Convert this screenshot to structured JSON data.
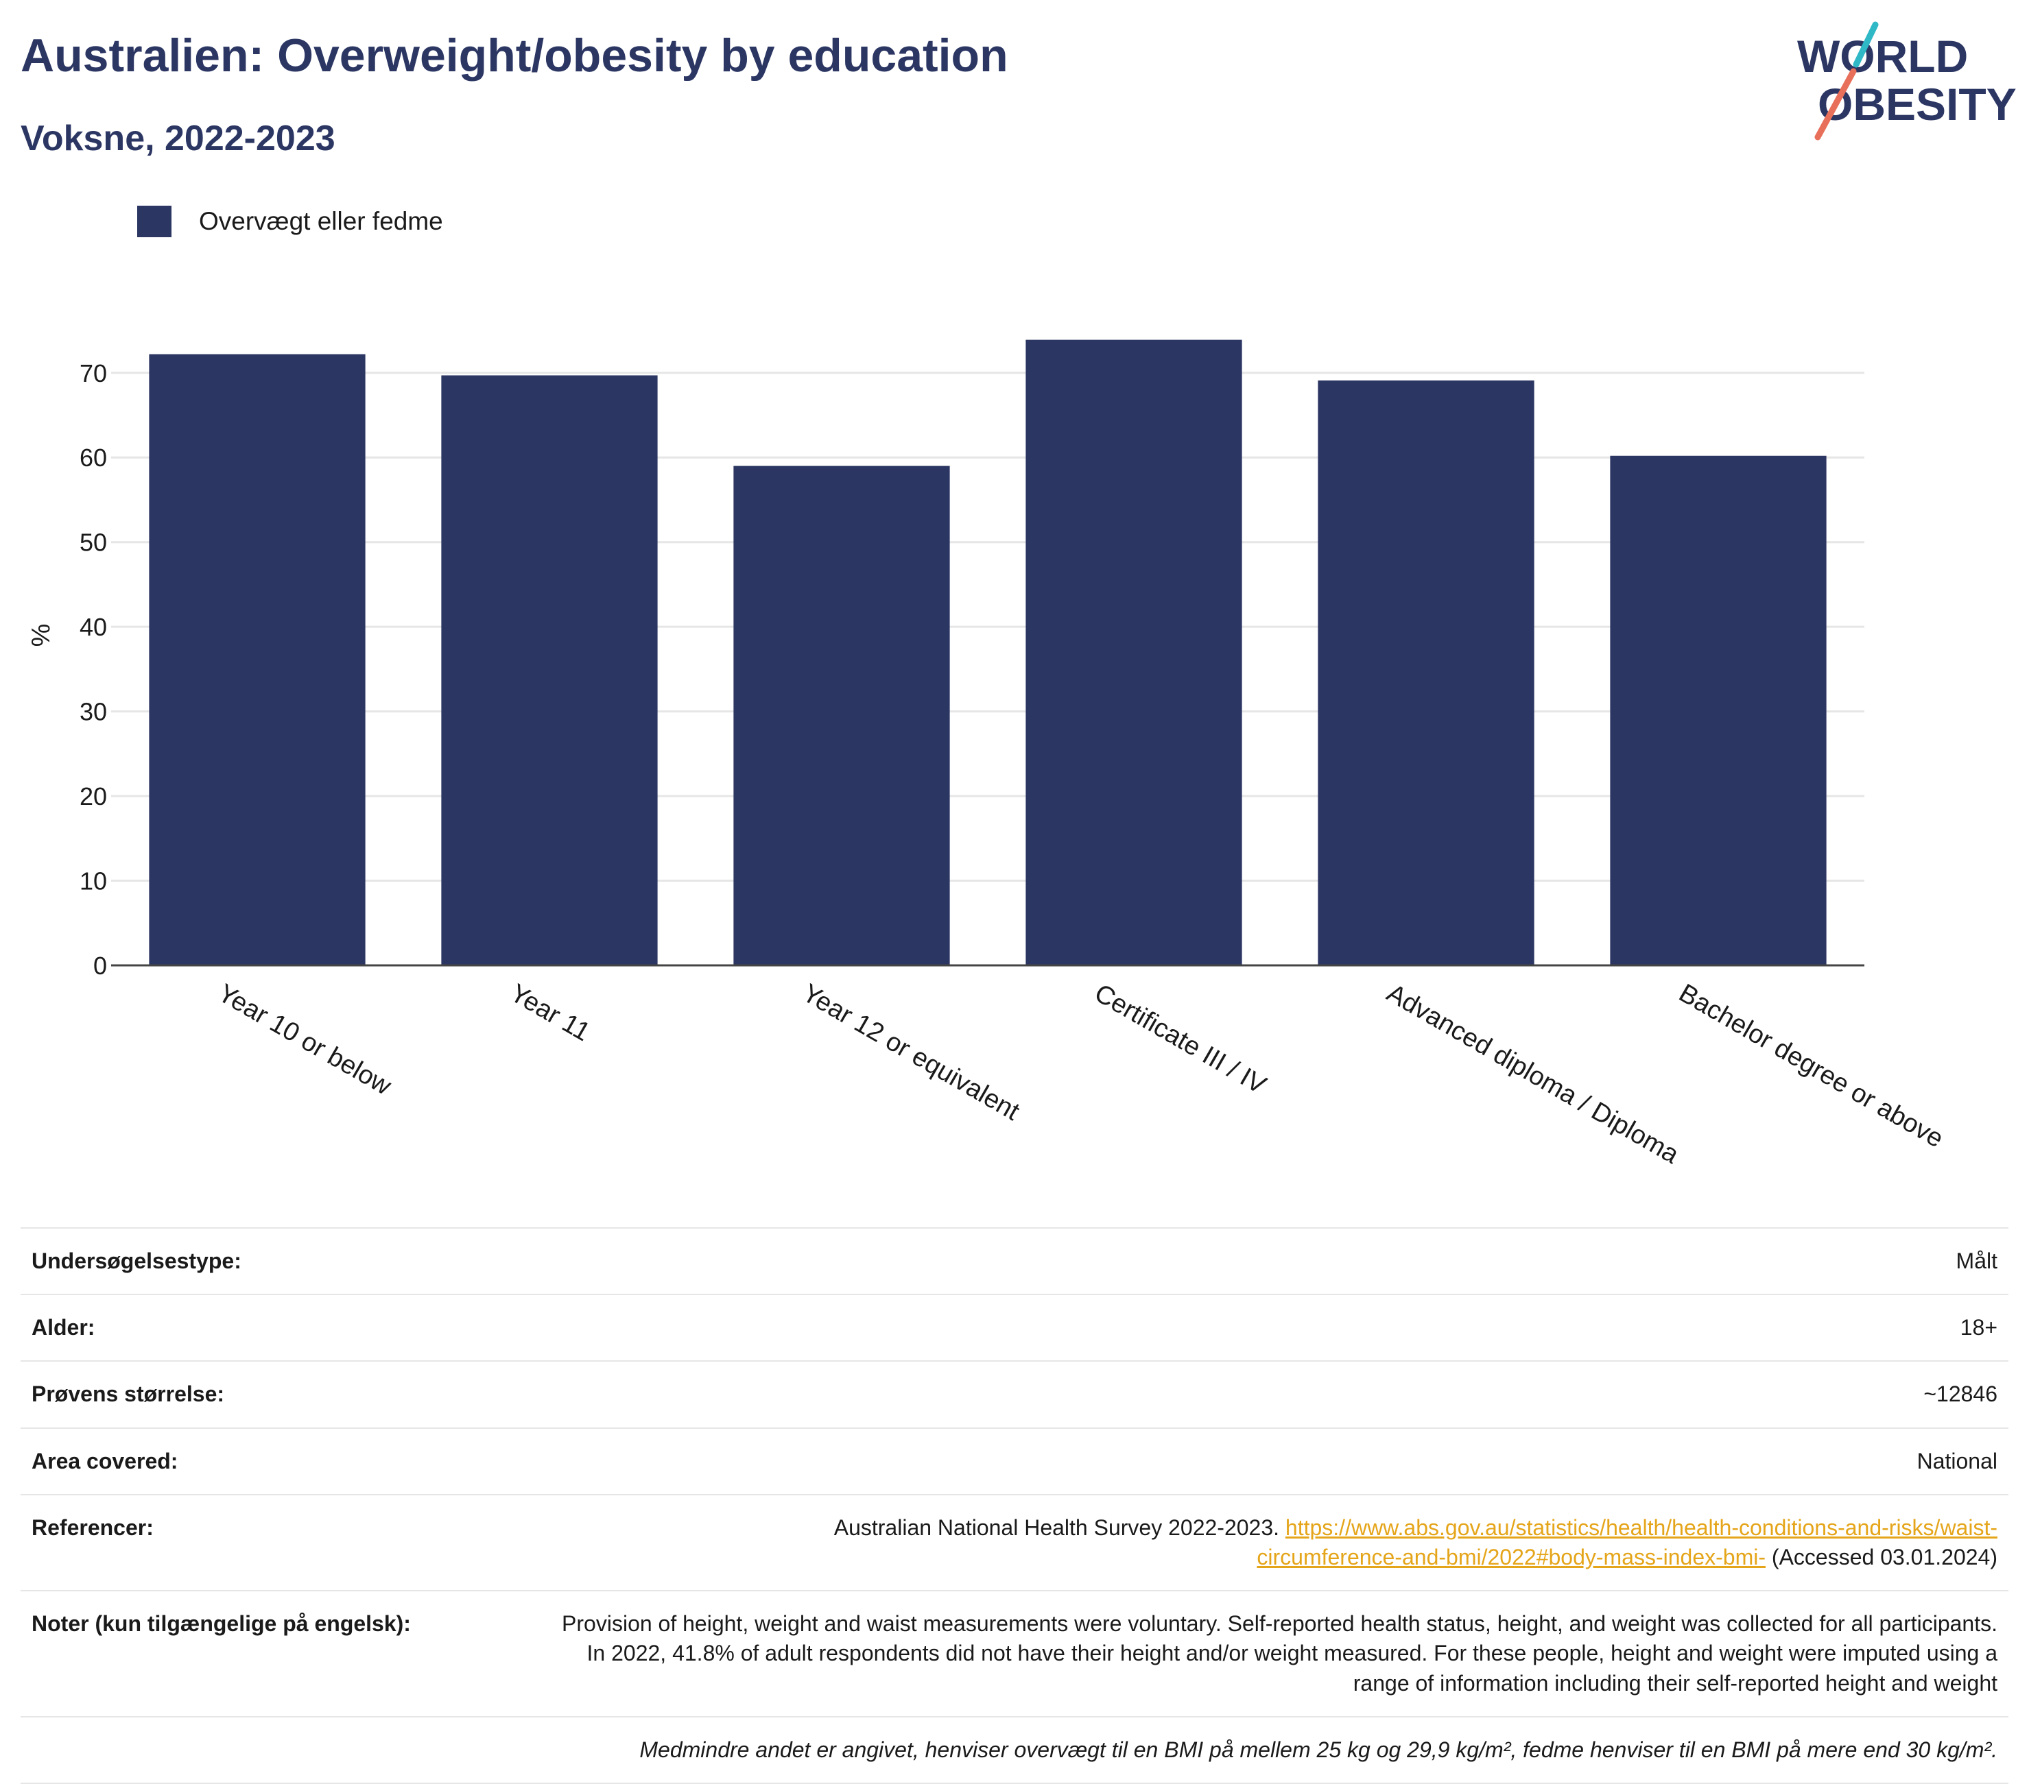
{
  "header": {
    "title": "Australien: Overweight/obesity by education",
    "subtitle": "Voksne, 2022-2023"
  },
  "logo": {
    "line1": "WORLD",
    "line2": "OBESITY"
  },
  "colors": {
    "bar": "#2b3663",
    "title": "#2b3663",
    "link": "#e5a51a",
    "grid": "#e6e6e6"
  },
  "chart_data": {
    "type": "bar",
    "title": "Australien: Overweight/obesity by education",
    "subtitle": "Voksne, 2022-2023",
    "ylabel": "%",
    "xlabel": "",
    "categories": [
      "Year 10 or below",
      "Year 11",
      "Year 12 or equivalent",
      "Certificate III / IV",
      "Advanced diploma / Diploma",
      "Bachelor degree or above"
    ],
    "series": [
      {
        "name": "Overvægt eller fedme",
        "values": [
          72.2,
          69.7,
          59.0,
          73.9,
          69.1,
          60.2
        ]
      }
    ],
    "ylim": [
      0,
      78
    ],
    "yticks": [
      0,
      10,
      20,
      30,
      40,
      50,
      60,
      70
    ],
    "grid": true,
    "legend_position": "top-left"
  },
  "info": {
    "survey_type": {
      "label": "Undersøgelsestype:",
      "value": "Målt"
    },
    "age": {
      "label": "Alder:",
      "value": "18+"
    },
    "sample_size": {
      "label": "Prøvens størrelse:",
      "value": "~12846"
    },
    "area": {
      "label": "Area covered:",
      "value": "National"
    },
    "references": {
      "label": "Referencer:",
      "text": "Australian National Health Survey 2022-2023.",
      "link_line1": "https://www.abs.gov.au/statistics/health/health-conditions-and-risks/waist-",
      "link_line2": "circumference-and-bmi/2022#body-mass-index-bmi-",
      "accessed": "(Accessed 03.01.2024)"
    },
    "notes": {
      "label": "Noter (kun tilgængelige på engelsk):",
      "value": "Provision of height, weight and waist measurements were voluntary. Self-reported health status, height, and weight was collected for all participants. In 2022, 41.8% of adult respondents did not have their height and/or weight measured. For these people, height and weight were imputed using a range of information including their self-reported height and weight"
    },
    "footnote": "Medmindre andet er angivet, henviser overvægt til en BMI på mellem 25 kg og 29,9 kg/m², fedme henviser til en BMI på mere end 30 kg/m²."
  }
}
